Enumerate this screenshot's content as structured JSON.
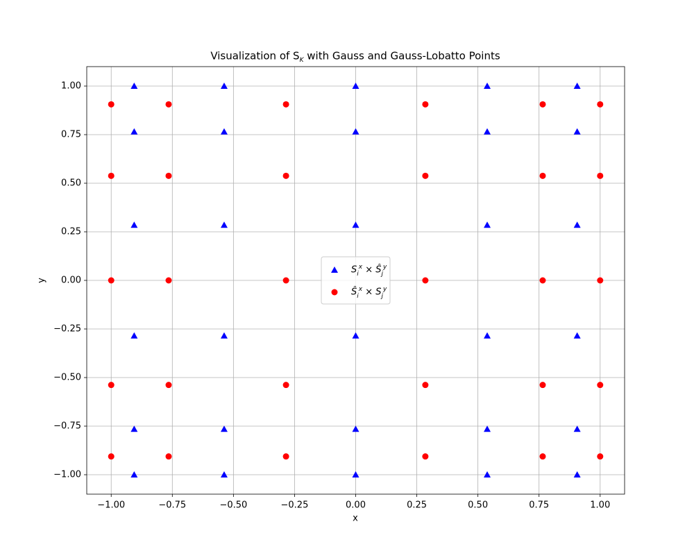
{
  "chart_data": {
    "type": "scatter",
    "title": "Visualization of S_K with Gauss and Gauss-Lobatto Points",
    "x_label": "x",
    "y_label": "y",
    "xlim": [
      -1.1,
      1.1
    ],
    "ylim": [
      -1.1,
      1.1
    ],
    "xticks": [
      {
        "value": -1,
        "label": "−1.00"
      },
      {
        "value": -0.75,
        "label": "−0.75"
      },
      {
        "value": -0.5,
        "label": "−0.50"
      },
      {
        "value": -0.25,
        "label": "−0.25"
      },
      {
        "value": 0,
        "label": "0.00"
      },
      {
        "value": 0.25,
        "label": "0.25"
      },
      {
        "value": 0.5,
        "label": "0.50"
      },
      {
        "value": 0.75,
        "label": "0.75"
      },
      {
        "value": 1,
        "label": "1.00"
      }
    ],
    "yticks": [
      {
        "value": -1,
        "label": "−1.00"
      },
      {
        "value": -0.75,
        "label": "−0.75"
      },
      {
        "value": -0.5,
        "label": "−0.50"
      },
      {
        "value": -0.25,
        "label": "−0.25"
      },
      {
        "value": 0,
        "label": "0.00"
      },
      {
        "value": 0.25,
        "label": "0.25"
      },
      {
        "value": 0.5,
        "label": "0.50"
      },
      {
        "value": 0.75,
        "label": "0.75"
      },
      {
        "value": 1,
        "label": "1.00"
      }
    ],
    "grid": true,
    "legend": "center",
    "series": [
      {
        "name": "S_i^x × Ŝ_j^y",
        "color": "#0000ff",
        "marker": "triangle",
        "x": [
          -0.906,
          -0.538,
          0,
          0.538,
          0.906,
          -0.906,
          -0.538,
          0,
          0.538,
          0.906,
          -0.906,
          -0.538,
          0,
          0.538,
          0.906,
          -0.906,
          -0.538,
          0,
          0.538,
          0.906,
          -0.906,
          -0.538,
          0,
          0.538,
          0.906,
          -0.906,
          -0.538,
          0,
          0.538,
          0.906
        ],
        "values": [
          -1,
          -1,
          -1,
          -1,
          -1,
          -0.765,
          -0.765,
          -0.765,
          -0.765,
          -0.765,
          -0.285,
          -0.285,
          -0.285,
          -0.285,
          -0.285,
          0.285,
          0.285,
          0.285,
          0.285,
          0.285,
          0.765,
          0.765,
          0.765,
          0.765,
          0.765,
          1,
          1,
          1,
          1,
          1
        ]
      },
      {
        "name": "Ŝ_i^x × S_j^y",
        "color": "#ff0000",
        "marker": "circle",
        "x": [
          -1,
          -0.765,
          -0.285,
          0.285,
          0.765,
          1,
          -1,
          -0.765,
          -0.285,
          0.285,
          0.765,
          1,
          -1,
          -0.765,
          -0.285,
          0.285,
          0.765,
          1,
          -1,
          -0.765,
          -0.285,
          0.285,
          0.765,
          1,
          -1,
          -0.765,
          -0.285,
          0.285,
          0.765,
          1
        ],
        "values": [
          -0.906,
          -0.906,
          -0.906,
          -0.906,
          -0.906,
          -0.906,
          -0.538,
          -0.538,
          -0.538,
          -0.538,
          -0.538,
          -0.538,
          0,
          0,
          0,
          0,
          0,
          0,
          0.538,
          0.538,
          0.538,
          0.538,
          0.538,
          0.538,
          0.906,
          0.906,
          0.906,
          0.906,
          0.906,
          0.906
        ]
      }
    ]
  }
}
